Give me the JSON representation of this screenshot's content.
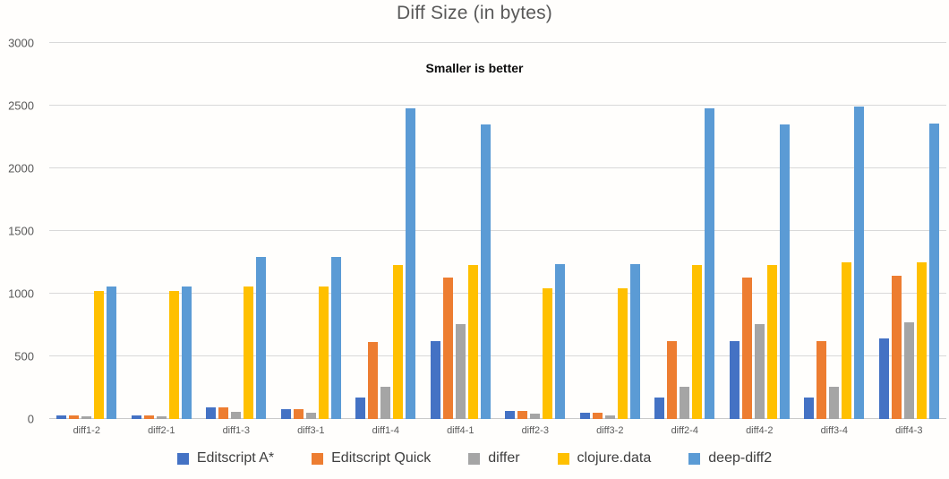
{
  "chart": {
    "title": "Diff Size (in bytes)",
    "subtitle": "Smaller is better"
  },
  "chart_data": {
    "type": "bar",
    "title": "Diff Size (in bytes)",
    "subtitle": "Smaller is better",
    "xlabel": "",
    "ylabel": "",
    "ylim": [
      0,
      3000
    ],
    "yticks": [
      0,
      500,
      1000,
      1500,
      2000,
      2500,
      3000
    ],
    "grid": true,
    "legend_position": "bottom",
    "categories": [
      "diff1-2",
      "diff2-1",
      "diff1-3",
      "diff3-1",
      "diff1-4",
      "diff4-1",
      "diff2-3",
      "diff3-2",
      "diff2-4",
      "diff4-2",
      "diff3-4",
      "diff4-3"
    ],
    "series": [
      {
        "name": "Editscript A*",
        "color": "#4472C4",
        "values": [
          30,
          30,
          90,
          80,
          170,
          620,
          65,
          50,
          170,
          620,
          170,
          640
        ]
      },
      {
        "name": "Editscript Quick",
        "color": "#ED7D31",
        "values": [
          30,
          30,
          90,
          80,
          615,
          1130,
          65,
          50,
          620,
          1130,
          620,
          1140
        ]
      },
      {
        "name": "differ",
        "color": "#A5A5A5",
        "values": [
          25,
          25,
          55,
          50,
          255,
          760,
          45,
          30,
          255,
          760,
          255,
          770
        ]
      },
      {
        "name": "clojure.data",
        "color": "#FFC000",
        "values": [
          1020,
          1020,
          1060,
          1060,
          1230,
          1230,
          1040,
          1040,
          1230,
          1230,
          1250,
          1250
        ]
      },
      {
        "name": "deep-diff2",
        "color": "#5B9BD5",
        "values": [
          1060,
          1060,
          1290,
          1290,
          2480,
          2350,
          1235,
          1235,
          2480,
          2350,
          2490,
          2360
        ]
      }
    ]
  }
}
